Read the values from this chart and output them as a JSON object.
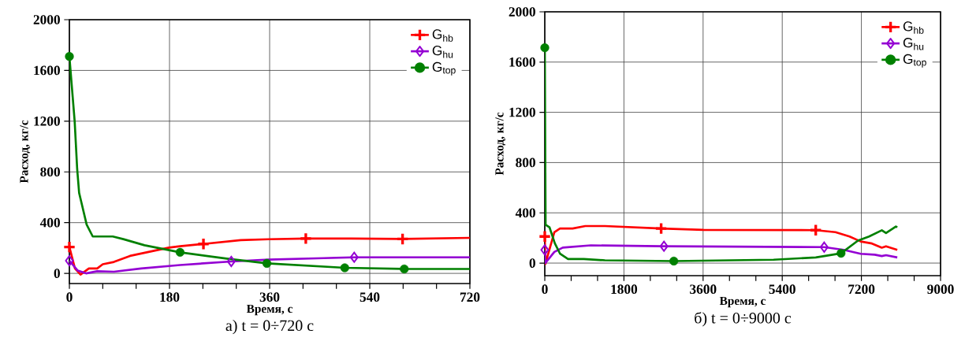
{
  "chart_data": [
    {
      "type": "line",
      "title": "а) t = 0÷720 с",
      "xlabel": "Время, с",
      "ylabel": "Расход, кг/с",
      "xlim": [
        0,
        720
      ],
      "xticks": [
        0,
        180,
        360,
        540,
        720
      ],
      "ylim": [
        -80,
        2000
      ],
      "yticks": [
        0,
        400,
        800,
        1200,
        1600,
        2000
      ],
      "grid": true,
      "legend": "top right",
      "series": [
        {
          "name": "G$_{hb}$",
          "color": "#ff0000",
          "x": [
            0,
            10,
            20,
            35,
            50,
            60,
            80,
            109,
            139,
            179,
            199,
            241,
            308,
            358,
            425,
            507,
            599,
            720
          ],
          "values": [
            208,
            39,
            -9,
            39,
            39,
            72,
            90,
            138,
            166,
            203,
            214,
            232,
            262,
            269,
            275,
            275,
            271,
            280
          ]
        },
        {
          "name": "G$_{hu}$",
          "color": "#9400d3",
          "x": [
            0,
            15,
            30,
            50,
            80,
            129,
            199,
            291,
            358,
            457,
            512,
            720
          ],
          "values": [
            100,
            22,
            0,
            17,
            13,
            39,
            66,
            94,
            109,
            120,
            127,
            127
          ]
        },
        {
          "name": "G$_{top}$",
          "color": "#008000",
          "x": [
            0,
            9.5,
            14,
            17.5,
            31,
            42,
            58,
            78,
            97,
            135,
            199,
            283,
            355,
            495,
            602,
            720
          ],
          "values": [
            1710,
            1198,
            822,
            635,
            385,
            291,
            291,
            291,
            270,
            222,
            166,
            116,
            79,
            44,
            35,
            35
          ]
        },
        {
          "type": "scatter",
          "color": "#ff0000",
          "marker": "cross",
          "x": [
            0,
            241,
            425,
            599
          ],
          "values": [
            208,
            232,
            275,
            271
          ]
        },
        {
          "type": "scatter",
          "color": "#9400d3",
          "marker": "diamond",
          "x": [
            0,
            291,
            512
          ],
          "values": [
            100,
            94,
            127
          ]
        },
        {
          "type": "scatter",
          "color": "#008000",
          "marker": "circle",
          "x": [
            0,
            199,
            355,
            495,
            602
          ],
          "values": [
            1710,
            166,
            79,
            44,
            35
          ]
        }
      ]
    },
    {
      "type": "line",
      "title": "б) t = 0÷9000 с",
      "xlabel": "Время, с",
      "ylabel": "Расход, кг/с",
      "xlim": [
        0,
        9000
      ],
      "xticks": [
        0,
        1800,
        3600,
        5400,
        7200,
        9000
      ],
      "ylim": [
        -100,
        2000
      ],
      "yticks": [
        0,
        400,
        800,
        1200,
        1600,
        2000
      ],
      "grid": true,
      "legend": "top right",
      "series": [
        {
          "name": "G$_{hb}$",
          "color": "#ff0000",
          "x": [
            0,
            13,
            217,
            345,
            633,
            920,
            1368,
            2646,
            3605,
            6162,
            6609,
            6929,
            7185,
            7440,
            7664,
            7760,
            8016
          ],
          "values": [
            212,
            -7,
            246,
            275,
            275,
            295,
            295,
            275,
            264,
            262,
            246,
            212,
            172,
            156,
            123,
            134,
            105
          ]
        },
        {
          "name": "G$_{hu}$",
          "color": "#9400d3",
          "x": [
            0,
            13,
            217,
            409,
            1048,
            2646,
            6354,
            6801,
            7185,
            7504,
            7664,
            7760,
            8016
          ],
          "values": [
            105,
            0,
            89,
            123,
            141,
            134,
            127,
            105,
            74,
            67,
            56,
            63,
            45
          ]
        },
        {
          "name": "G$_{top}$",
          "color": "#008000",
          "x": [
            0,
            18,
            108,
            228,
            348,
            528,
            888,
            1368,
            2934,
            5203,
            6162,
            6737,
            7121,
            7376,
            7664,
            7760,
            7984,
            8016
          ],
          "values": [
            1714,
            305,
            284,
            158,
            74,
            32,
            32,
            22,
            16,
            27,
            45,
            78,
            179,
            212,
            261,
            239,
            291,
            284
          ]
        },
        {
          "type": "scatter",
          "color": "#ff0000",
          "marker": "cross",
          "x": [
            0,
            2646,
            6162
          ],
          "values": [
            212,
            275,
            262
          ]
        },
        {
          "type": "scatter",
          "color": "#9400d3",
          "marker": "diamond",
          "x": [
            0,
            2710,
            6354
          ],
          "values": [
            105,
            134,
            127
          ]
        },
        {
          "type": "scatter",
          "color": "#008000",
          "marker": "circle",
          "x": [
            0,
            2934,
            6737
          ],
          "values": [
            1714,
            16,
            78
          ]
        }
      ]
    }
  ]
}
